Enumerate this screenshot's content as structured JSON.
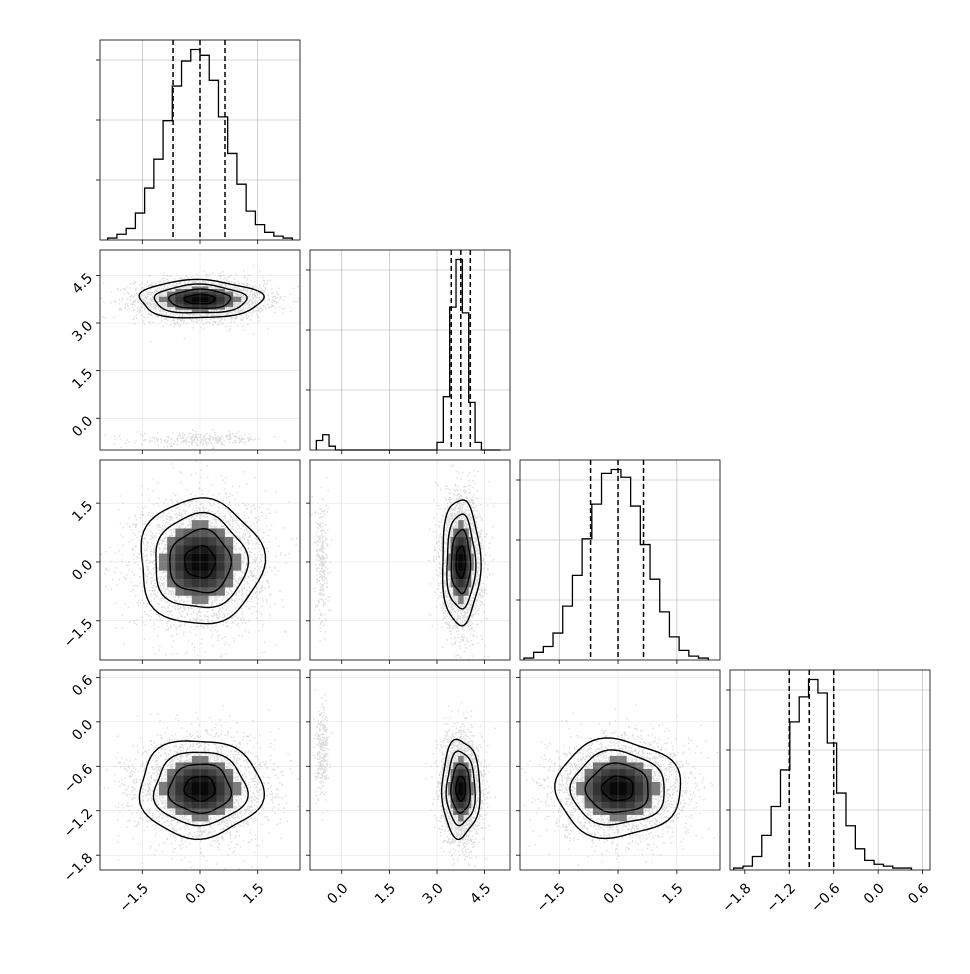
{
  "chart_data": {
    "type": "corner",
    "title": "",
    "parameters": [
      {
        "label": "",
        "range": [
          -2.6,
          2.6
        ],
        "ticks": [
          -1.5,
          0.0,
          1.5
        ],
        "tick_labels": [
          "−1.5",
          "0.0",
          "1.5"
        ],
        "quantiles": [
          -0.7,
          0.0,
          0.65
        ]
      },
      {
        "label": "",
        "range": [
          -1.0,
          5.3
        ],
        "ticks": [
          0.0,
          1.5,
          3.0,
          4.5
        ],
        "tick_labels": [
          "0.0",
          "1.5",
          "3.0",
          "4.5"
        ],
        "quantiles": [
          3.45,
          3.75,
          4.05
        ]
      },
      {
        "label": "",
        "range": [
          -2.5,
          2.6
        ],
        "ticks": [
          -1.5,
          0.0,
          1.5
        ],
        "tick_labels": [
          "−1.5",
          "0.0",
          "1.5"
        ],
        "quantiles": [
          -0.7,
          0.0,
          0.65
        ]
      },
      {
        "label": "",
        "range": [
          -2.0,
          0.7
        ],
        "ticks": [
          -1.8,
          -1.2,
          -0.6,
          0.0,
          0.6
        ],
        "tick_labels": [
          "−1.8",
          "−1.2",
          "−0.6",
          "0.0",
          "0.6"
        ],
        "quantiles": [
          -1.2,
          -0.93,
          -0.6
        ]
      }
    ],
    "histograms": [
      {
        "param": 0,
        "edges_range": [
          -2.4,
          2.4
        ],
        "counts": [
          0.01,
          0.03,
          0.06,
          0.14,
          0.27,
          0.42,
          0.62,
          0.8,
          0.93,
          0.99,
          0.96,
          0.83,
          0.64,
          0.45,
          0.29,
          0.15,
          0.08,
          0.04,
          0.02,
          0.01
        ]
      },
      {
        "param": 1,
        "edges_range": [
          -0.8,
          5.0
        ],
        "counts": [
          0.05,
          0.08,
          0.02,
          0,
          0,
          0,
          0,
          0,
          0,
          0,
          0,
          0,
          0,
          0,
          0,
          0,
          0,
          0,
          0,
          0.04,
          0.28,
          0.75,
          1.0,
          0.72,
          0.25,
          0.04,
          0,
          0,
          0
        ]
      },
      {
        "param": 2,
        "edges_range": [
          -2.4,
          2.3
        ],
        "counts": [
          0.01,
          0.04,
          0.07,
          0.14,
          0.28,
          0.44,
          0.63,
          0.81,
          0.97,
          0.99,
          0.95,
          0.8,
          0.6,
          0.42,
          0.25,
          0.12,
          0.05,
          0.02,
          0.01
        ]
      },
      {
        "param": 3,
        "edges_range": [
          -1.95,
          0.45
        ],
        "counts": [
          0.01,
          0.02,
          0.07,
          0.18,
          0.33,
          0.52,
          0.77,
          0.9,
          0.99,
          0.92,
          0.66,
          0.4,
          0.23,
          0.11,
          0.05,
          0.03,
          0.02,
          0.01,
          0.01
        ]
      }
    ],
    "pairs": [
      {
        "x_param": 0,
        "y_param": 1,
        "modes": [
          {
            "cx": 0.0,
            "cy": 3.75,
            "sx": 0.8,
            "sy": 0.3,
            "rho": 0.0,
            "weight": 0.95
          },
          {
            "cx": 0.0,
            "cy": -0.65,
            "sx": 0.8,
            "sy": 0.1,
            "rho": 0.0,
            "weight": 0.05
          }
        ]
      },
      {
        "x_param": 0,
        "y_param": 2,
        "modes": [
          {
            "cx": 0.0,
            "cy": 0.0,
            "sx": 0.8,
            "sy": 0.8,
            "rho": 0.0,
            "weight": 1.0
          }
        ]
      },
      {
        "x_param": 1,
        "y_param": 2,
        "modes": [
          {
            "cx": 3.75,
            "cy": 0.0,
            "sx": 0.3,
            "sy": 0.8,
            "rho": 0.0,
            "weight": 0.95
          },
          {
            "cx": -0.65,
            "cy": 0.0,
            "sx": 0.1,
            "sy": 0.8,
            "rho": 0.0,
            "weight": 0.05
          }
        ]
      },
      {
        "x_param": 0,
        "y_param": 3,
        "modes": [
          {
            "cx": 0.0,
            "cy": -0.9,
            "sx": 0.8,
            "sy": 0.33,
            "rho": 0.0,
            "weight": 1.0
          }
        ]
      },
      {
        "x_param": 1,
        "y_param": 3,
        "modes": [
          {
            "cx": 3.75,
            "cy": -0.9,
            "sx": 0.3,
            "sy": 0.33,
            "rho": 0.0,
            "weight": 0.95
          },
          {
            "cx": -0.65,
            "cy": -0.4,
            "sx": 0.1,
            "sy": 0.3,
            "rho": 0.0,
            "weight": 0.05
          }
        ]
      },
      {
        "x_param": 2,
        "y_param": 3,
        "modes": [
          {
            "cx": 0.0,
            "cy": -0.9,
            "sx": 0.8,
            "sy": 0.33,
            "rho": 0.0,
            "weight": 1.0
          }
        ]
      }
    ],
    "contour_levels_sigma": [
      0.5,
      1.0,
      1.5,
      2.0
    ],
    "colors": {
      "line": "#000000",
      "points": "#9a9a9a",
      "grid": "#b0b0b0",
      "background": "#ffffff"
    },
    "grid": true
  }
}
